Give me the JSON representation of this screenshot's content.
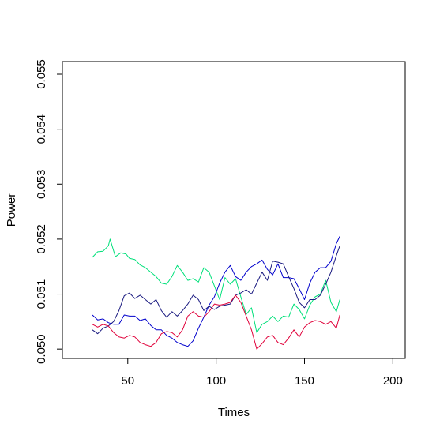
{
  "chart_data": {
    "type": "line",
    "title": "",
    "xlabel": "Times",
    "ylabel": "Power",
    "xlim": [
      13,
      207
    ],
    "ylim": [
      0.04983,
      0.05523
    ],
    "xticks": [
      50,
      100,
      150,
      200
    ],
    "yticks": [
      0.05,
      0.051,
      0.052,
      0.053,
      0.054,
      0.055
    ],
    "ytick_labels": [
      "0.050",
      "0.051",
      "0.052",
      "0.053",
      "0.054",
      "0.055"
    ],
    "grid": false,
    "legend": "none",
    "series": [
      {
        "color": "#00e07a",
        "x": [
          30,
          33,
          36,
          39,
          40,
          43,
          46,
          49,
          51,
          54,
          57,
          60,
          63,
          66,
          69,
          72,
          75,
          78,
          81,
          84,
          87,
          90,
          93,
          96,
          99,
          102,
          105,
          108,
          111,
          114,
          117,
          120,
          123,
          126,
          129,
          132,
          135,
          138,
          141,
          144,
          147,
          150,
          153,
          156,
          159,
          162,
          165,
          168,
          170
        ],
        "y": [
          0.05167,
          0.05177,
          0.05178,
          0.05188,
          0.052,
          0.05168,
          0.05175,
          0.05173,
          0.05165,
          0.05163,
          0.05153,
          0.05148,
          0.0514,
          0.05132,
          0.0512,
          0.05118,
          0.05132,
          0.05152,
          0.0514,
          0.05125,
          0.05128,
          0.05122,
          0.05148,
          0.0514,
          0.05115,
          0.0509,
          0.0513,
          0.05118,
          0.05128,
          0.05095,
          0.05063,
          0.05075,
          0.0503,
          0.05045,
          0.0505,
          0.0506,
          0.0505,
          0.0506,
          0.05058,
          0.05082,
          0.05072,
          0.05055,
          0.0508,
          0.05095,
          0.051,
          0.05125,
          0.05085,
          0.05068,
          0.0509
        ]
      },
      {
        "color": "#0000cc",
        "x": [
          30,
          33,
          36,
          39,
          42,
          45,
          48,
          51,
          54,
          57,
          60,
          63,
          66,
          69,
          72,
          75,
          78,
          81,
          84,
          87,
          90,
          93,
          96,
          99,
          102,
          105,
          108,
          111,
          114,
          117,
          120,
          123,
          126,
          129,
          132,
          135,
          138,
          141,
          144,
          147,
          150,
          153,
          156,
          159,
          162,
          165,
          168,
          170
        ],
        "y": [
          0.05062,
          0.05053,
          0.05055,
          0.05048,
          0.05045,
          0.05045,
          0.05062,
          0.0506,
          0.0506,
          0.05052,
          0.05055,
          0.05043,
          0.05035,
          0.05035,
          0.05025,
          0.0502,
          0.05012,
          0.05008,
          0.05005,
          0.05015,
          0.05038,
          0.05058,
          0.0508,
          0.05095,
          0.0512,
          0.0514,
          0.05152,
          0.05132,
          0.05125,
          0.0514,
          0.0515,
          0.05155,
          0.05162,
          0.05145,
          0.05135,
          0.05155,
          0.0513,
          0.0513,
          0.05128,
          0.0511,
          0.0509,
          0.0512,
          0.0514,
          0.05148,
          0.05148,
          0.0516,
          0.05192,
          0.05205
        ]
      },
      {
        "color": "#1a1a80",
        "x": [
          30,
          33,
          36,
          39,
          42,
          45,
          48,
          51,
          54,
          57,
          60,
          63,
          66,
          69,
          72,
          75,
          78,
          81,
          84,
          87,
          90,
          93,
          96,
          99,
          102,
          105,
          108,
          111,
          114,
          117,
          120,
          123,
          126,
          129,
          132,
          135,
          138,
          141,
          144,
          147,
          150,
          153,
          156,
          159,
          162,
          165,
          168,
          170
        ],
        "y": [
          0.05035,
          0.05028,
          0.05038,
          0.05042,
          0.0505,
          0.0507,
          0.05097,
          0.05102,
          0.05092,
          0.05098,
          0.0509,
          0.05082,
          0.0509,
          0.0507,
          0.05058,
          0.05068,
          0.0506,
          0.0507,
          0.05082,
          0.05098,
          0.0509,
          0.0507,
          0.05078,
          0.05072,
          0.05078,
          0.0508,
          0.05082,
          0.05098,
          0.05102,
          0.05108,
          0.051,
          0.0512,
          0.0514,
          0.05125,
          0.0516,
          0.05158,
          0.05155,
          0.05132,
          0.0511,
          0.05085,
          0.05075,
          0.0509,
          0.0509,
          0.05098,
          0.05118,
          0.0514,
          0.0517,
          0.05188
        ]
      },
      {
        "color": "#e0003a",
        "x": [
          30,
          33,
          36,
          39,
          42,
          45,
          48,
          51,
          54,
          57,
          60,
          63,
          66,
          69,
          72,
          75,
          78,
          81,
          84,
          87,
          90,
          93,
          96,
          99,
          102,
          105,
          108,
          111,
          114,
          117,
          120,
          123,
          126,
          129,
          132,
          135,
          138,
          141,
          144,
          147,
          150,
          153,
          156,
          159,
          162,
          165,
          168,
          170
        ],
        "y": [
          0.05045,
          0.0504,
          0.05045,
          0.05042,
          0.0503,
          0.05022,
          0.0502,
          0.05025,
          0.05022,
          0.05012,
          0.05008,
          0.05005,
          0.05012,
          0.05028,
          0.05032,
          0.0503,
          0.05022,
          0.05035,
          0.0506,
          0.05068,
          0.0506,
          0.05058,
          0.05068,
          0.05082,
          0.0508,
          0.05082,
          0.05085,
          0.05098,
          0.05085,
          0.0506,
          0.05035,
          0.05,
          0.0501,
          0.05022,
          0.05025,
          0.05012,
          0.05008,
          0.0502,
          0.05035,
          0.05022,
          0.0504,
          0.05048,
          0.05052,
          0.0505,
          0.05045,
          0.0505,
          0.05038,
          0.05062
        ]
      }
    ]
  }
}
